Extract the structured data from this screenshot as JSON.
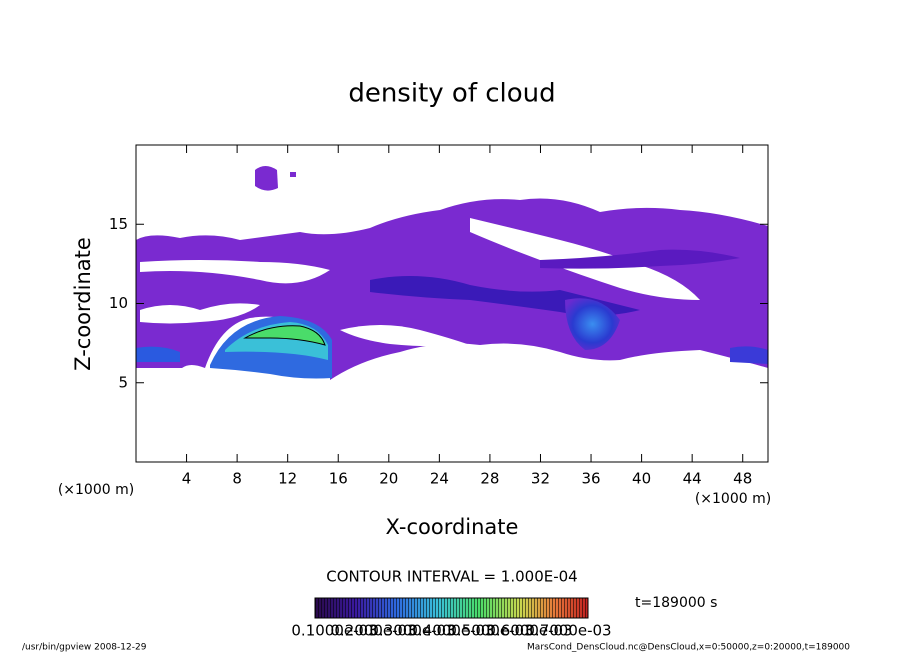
{
  "chart_data": {
    "type": "contour",
    "title": "density of cloud",
    "x_label": "X-coordinate",
    "y_label": "Z-coordinate",
    "x_unit": "(×1000 m)",
    "y_unit": "(×1000 m)",
    "xlim": [
      0,
      50
    ],
    "xticks": [
      4,
      8,
      12,
      16,
      20,
      24,
      28,
      32,
      36,
      40,
      44,
      48
    ],
    "ylim": [
      0,
      20
    ],
    "yticks": [
      5,
      10,
      15
    ],
    "contour_interval": "CONTOUR INTERVAL = 1.000E-04",
    "time": "t=189000 s",
    "colorbar_labels": [
      "0.1000e-03",
      "0.2000e-03",
      "0.3000e-03",
      "0.4000e-03",
      "0.5000e-03",
      "0.6000e-03",
      "0.7000e-03"
    ],
    "footer_left": "/usr/bin/gpview   2008-12-29",
    "footer_right": "MarsCond_DensCloud.nc@DensCloud,x=0:50000,z=0:20000,t=189000"
  }
}
